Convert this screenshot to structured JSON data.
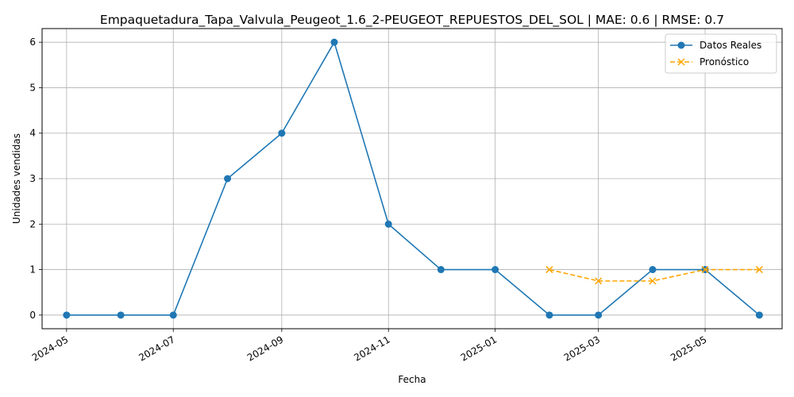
{
  "chart_data": {
    "type": "line",
    "title": "Empaquetadura_Tapa_Valvula_Peugeot_1.6_2-PEUGEOT_REPUESTOS_DEL_SOL | MAE: 0.6 | RMSE: 0.7",
    "xlabel": "Fecha",
    "ylabel": "Unidades vendidas",
    "ylim": [
      -0.3,
      6.3
    ],
    "xlim": [
      "2024-04-17",
      "2025-06-14"
    ],
    "grid": true,
    "legend_position": "top-right",
    "x_ticks": [
      "2024-05",
      "2024-07",
      "2024-09",
      "2024-11",
      "2025-01",
      "2025-03",
      "2025-05"
    ],
    "y_ticks": [
      0,
      1,
      2,
      3,
      4,
      5,
      6
    ],
    "series": [
      {
        "name": "Datos Reales",
        "style": "solid",
        "marker": "circle",
        "color": "#1f77b4",
        "x": [
          "2024-05-01",
          "2024-06-01",
          "2024-07-01",
          "2024-08-01",
          "2024-09-01",
          "2024-10-01",
          "2024-11-01",
          "2024-12-01",
          "2025-01-01",
          "2025-02-01",
          "2025-03-01",
          "2025-04-01",
          "2025-05-01",
          "2025-06-01"
        ],
        "values": [
          0,
          0,
          0,
          3,
          4,
          6,
          2,
          1,
          1,
          0,
          0,
          1,
          1,
          0
        ]
      },
      {
        "name": "Pronóstico",
        "style": "dashed",
        "marker": "x",
        "color": "#ffa500",
        "x": [
          "2025-02-01",
          "2025-03-01",
          "2025-04-01",
          "2025-05-01",
          "2025-06-01"
        ],
        "values": [
          1,
          0.75,
          0.75,
          1,
          1
        ]
      }
    ]
  }
}
